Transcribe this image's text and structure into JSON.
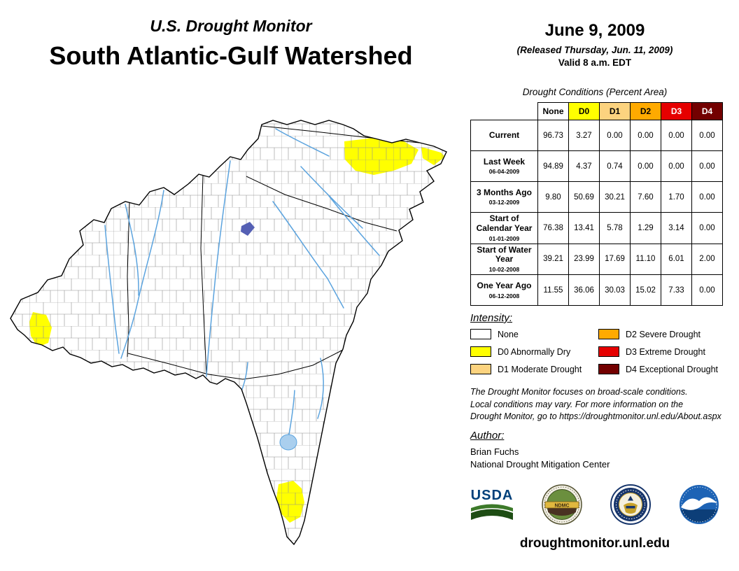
{
  "header": {
    "program": "U.S. Drought Monitor",
    "region": "South Atlantic-Gulf Watershed",
    "date": "June 9, 2009",
    "released": "(Released Thursday, Jun. 11, 2009)",
    "valid": "Valid 8 a.m. EDT"
  },
  "table": {
    "title": "Drought Conditions (Percent Area)",
    "columns": [
      {
        "label": "None",
        "bg": "#FFFFFF",
        "fg": "#000000"
      },
      {
        "label": "D0",
        "bg": "#FFFF00",
        "fg": "#000000"
      },
      {
        "label": "D1",
        "bg": "#FCD37F",
        "fg": "#000000"
      },
      {
        "label": "D2",
        "bg": "#FFAA00",
        "fg": "#000000"
      },
      {
        "label": "D3",
        "bg": "#E60000",
        "fg": "#FFFFFF"
      },
      {
        "label": "D4",
        "bg": "#730000",
        "fg": "#FFFFFF"
      }
    ]
  },
  "chart_data": {
    "type": "table",
    "title": "Drought Conditions (Percent Area)",
    "columns": [
      "None",
      "D0",
      "D1",
      "D2",
      "D3",
      "D4"
    ],
    "rows": [
      {
        "label": "Current",
        "date": "",
        "values": [
          96.73,
          3.27,
          0.0,
          0.0,
          0.0,
          0.0
        ]
      },
      {
        "label": "Last Week",
        "date": "06-04-2009",
        "values": [
          94.89,
          4.37,
          0.74,
          0.0,
          0.0,
          0.0
        ]
      },
      {
        "label": "3 Months Ago",
        "date": "03-12-2009",
        "values": [
          9.8,
          50.69,
          30.21,
          7.6,
          1.7,
          0.0
        ]
      },
      {
        "label": "Start of Calendar Year",
        "date": "01-01-2009",
        "values": [
          76.38,
          13.41,
          5.78,
          1.29,
          3.14,
          0.0
        ]
      },
      {
        "label": "Start of Water Year",
        "date": "10-02-2008",
        "values": [
          39.21,
          23.99,
          17.69,
          11.1,
          6.01,
          2.0
        ]
      },
      {
        "label": "One Year Ago",
        "date": "06-12-2008",
        "values": [
          11.55,
          36.06,
          30.03,
          15.02,
          7.33,
          0.0
        ]
      }
    ]
  },
  "legend": {
    "title": "Intensity:",
    "items": [
      {
        "label": "None",
        "color": "#FFFFFF"
      },
      {
        "label": "D0 Abnormally Dry",
        "color": "#FFFF00"
      },
      {
        "label": "D1 Moderate Drought",
        "color": "#FCD37F"
      },
      {
        "label": "D2 Severe Drought",
        "color": "#FFAA00"
      },
      {
        "label": "D3 Extreme Drought",
        "color": "#E60000"
      },
      {
        "label": "D4 Exceptional Drought",
        "color": "#730000"
      }
    ]
  },
  "disclaimer": {
    "line1": "The Drought Monitor focuses on broad-scale conditions.",
    "line2": "Local conditions may vary. For more information on the",
    "line3": "Drought Monitor, go to https://droughtmonitor.unl.edu/About.aspx"
  },
  "author": {
    "title": "Author:",
    "name": "Brian Fuchs",
    "org": "National Drought Mitigation Center"
  },
  "logos": {
    "usda": {
      "label": "USDA"
    },
    "ndmc": {
      "label": "NDMC"
    },
    "doc": {
      "name": "us-department-of-commerce-seal"
    },
    "noaa": {
      "name": "noaa-emblem"
    }
  },
  "footer": {
    "url": "droughtmonitor.unl.edu"
  },
  "map": {
    "land_color": "#FFFFFF",
    "outline_color": "#000000",
    "county_line_color": "#8f8f8f",
    "river_color": "#5BA3DE",
    "lake_color": "#AACFEE",
    "reservoir_color": "#5560B4",
    "d0_color": "#FFFF00"
  }
}
